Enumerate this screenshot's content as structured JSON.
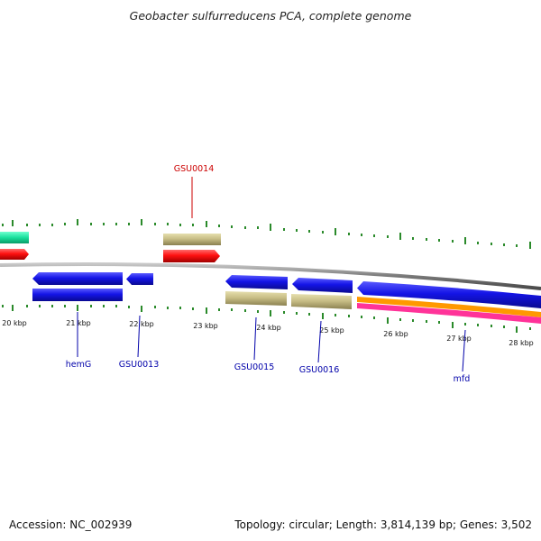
{
  "title": "Geobacter sulfurreducens PCA, complete genome",
  "footer": {
    "accession": "Accession: NC_002939",
    "info": "Topology: circular; Length: 3,814,139 bp; Genes: 3,502"
  },
  "ticks": [
    "20 kbp",
    "21 kbp",
    "22 kbp",
    "23 kbp",
    "24 kbp",
    "25 kbp",
    "26 kbp",
    "27 kbp",
    "28 kbp"
  ],
  "gene_labels": {
    "gsu0014": "GSU0014",
    "hemg": "hemG",
    "gsu0013": "GSU0013",
    "gsu0015": "GSU0015",
    "gsu0016": "GSU0016",
    "mfd": "mfd"
  },
  "colors": {
    "tick": "#2a8a2a",
    "backbone": "#808080",
    "forward_cds": "#ff1a1a",
    "forward_rna": "#20e0a0",
    "reverse_cds": "#1a1aee",
    "feature_khaki": "#c8c08a",
    "feature_orange": "#ff9900",
    "feature_pink": "#ff3399",
    "label_red": "#cc0000",
    "label_blue": "#0000aa"
  }
}
